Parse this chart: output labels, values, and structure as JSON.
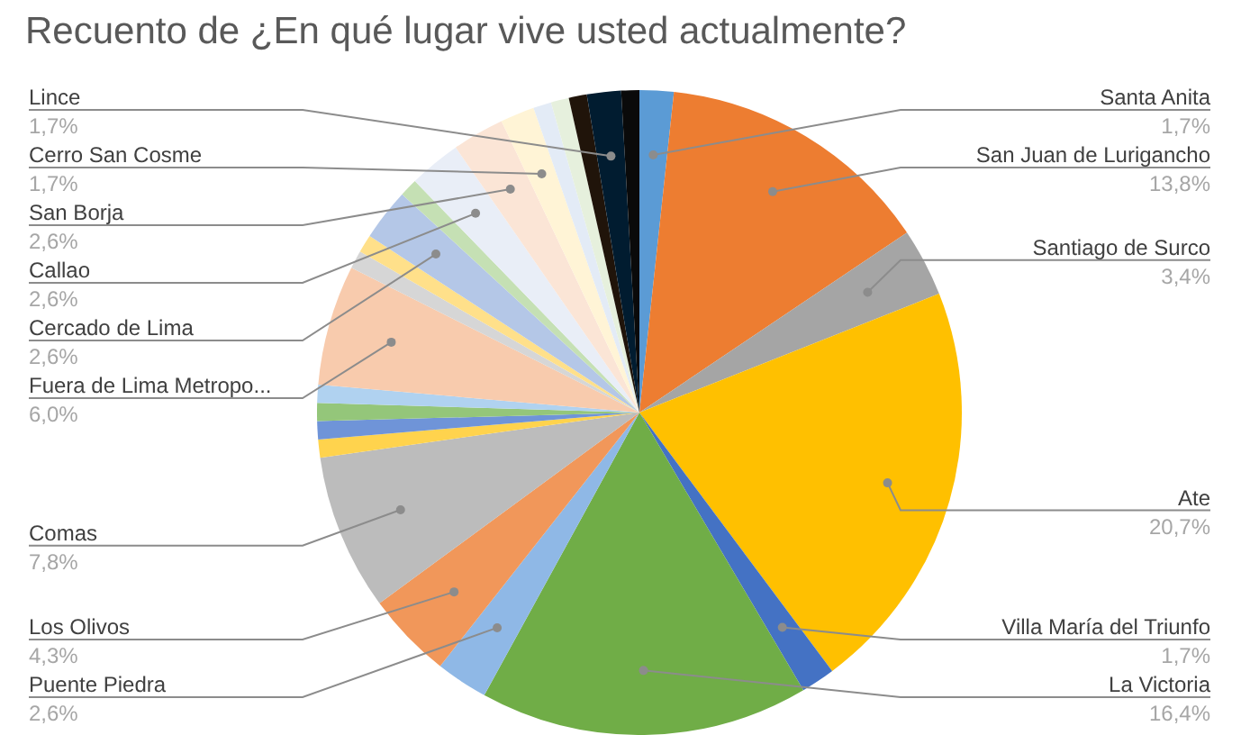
{
  "chart_data": {
    "type": "pie",
    "title": "Recuento de ¿En qué lugar vive usted actualmente?",
    "categories": [
      "Santa Anita",
      "San Juan de Lurigancho",
      "Santiago de Surco",
      "Ate",
      "Villa María del Triunfo",
      "La Victoria",
      "Puente Piedra",
      "Los Olivos",
      "Comas",
      null,
      null,
      null,
      null,
      "Fuera de Lima Metropo...",
      null,
      null,
      "Cercado de Lima",
      null,
      "Callao",
      "San Borja",
      "Cerro San Cosme",
      null,
      null,
      null,
      "Lince",
      null
    ],
    "values": [
      1.7,
      13.8,
      3.4,
      20.7,
      1.7,
      16.4,
      2.6,
      4.3,
      7.8,
      0.9,
      0.9,
      0.9,
      0.9,
      6.0,
      0.9,
      0.9,
      2.6,
      0.9,
      2.6,
      2.6,
      1.7,
      0.9,
      0.9,
      0.9,
      1.7,
      0.9
    ],
    "value_labels": [
      "1,7%",
      "13,8%",
      "3,4%",
      "20,7%",
      "1,7%",
      "16,4%",
      "2,6%",
      "4,3%",
      "7,8%",
      null,
      null,
      null,
      null,
      "6,0%",
      null,
      null,
      "2,6%",
      null,
      "2,6%",
      "2,6%",
      "1,7%",
      null,
      null,
      null,
      "1,7%",
      null
    ],
    "colors": [
      "#5b9bd5",
      "#ed7d31",
      "#a5a5a5",
      "#ffc000",
      "#4472c4",
      "#70ad47",
      "#8fb8e6",
      "#f1975a",
      "#bcbcbc",
      "#ffd34d",
      "#6f94d8",
      "#94c67a",
      "#b0d2f0",
      "#f8cbad",
      "#d6d6d6",
      "#ffe08a",
      "#b4c7e7",
      "#c5e0b4",
      "#e9eef7",
      "#fbe5d6",
      "#fff4d6",
      "#e3ebf6",
      "#e6f0dd",
      "#20140a",
      "#011c30",
      "#0a0a0a"
    ],
    "legend": false
  }
}
